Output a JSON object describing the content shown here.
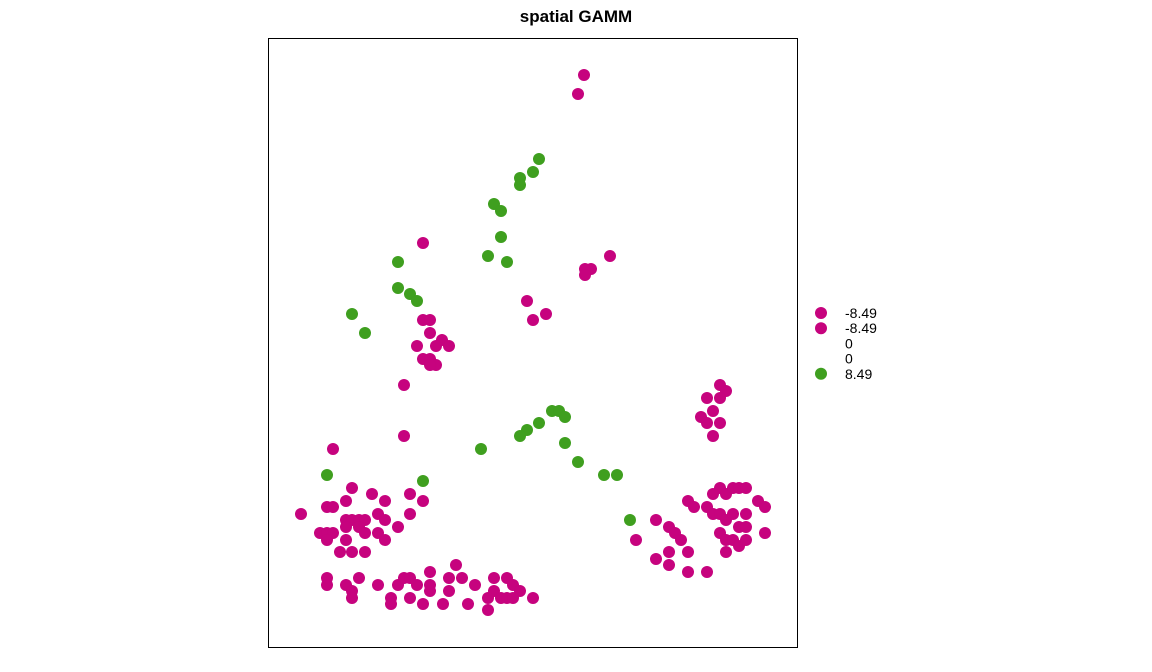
{
  "chart_data": {
    "type": "scatter",
    "title": "spatial GAMM",
    "xlabel": "",
    "ylabel": "",
    "grid": false,
    "axes_shown": false,
    "legend_position": "right",
    "colors": {
      "negative": "#c6037e",
      "positive": "#3f9f1f"
    },
    "legend": [
      {
        "label": "-8.49",
        "color": "#c6037e"
      },
      {
        "label": "-8.49",
        "color": "#c6037e"
      },
      {
        "label": "0",
        "color": null
      },
      {
        "label": "0",
        "color": null
      },
      {
        "label": "8.49",
        "color": "#3f9f1f"
      }
    ],
    "series": [
      {
        "color": "#c6037e",
        "points": [
          [
            584,
            75
          ],
          [
            578,
            94
          ],
          [
            423,
            243
          ],
          [
            610,
            256
          ],
          [
            591,
            269
          ],
          [
            585,
            269
          ],
          [
            585,
            275
          ],
          [
            527,
            301
          ],
          [
            546,
            314
          ],
          [
            533,
            320
          ],
          [
            423,
            320
          ],
          [
            430,
            320
          ],
          [
            430,
            333
          ],
          [
            442,
            340
          ],
          [
            436,
            346
          ],
          [
            449,
            346
          ],
          [
            417,
            346
          ],
          [
            423,
            359
          ],
          [
            430,
            359
          ],
          [
            436,
            365
          ],
          [
            430,
            365
          ],
          [
            404,
            385
          ],
          [
            720,
            385
          ],
          [
            726,
            391
          ],
          [
            707,
            398
          ],
          [
            720,
            398
          ],
          [
            713,
            411
          ],
          [
            701,
            417
          ],
          [
            707,
            423
          ],
          [
            720,
            423
          ],
          [
            713,
            436
          ],
          [
            404,
            436
          ],
          [
            333,
            449
          ],
          [
            352,
            488
          ],
          [
            346,
            501
          ],
          [
            372,
            494
          ],
          [
            385,
            501
          ],
          [
            410,
            494
          ],
          [
            423,
            501
          ],
          [
            410,
            514
          ],
          [
            327,
            507
          ],
          [
            333,
            507
          ],
          [
            301,
            514
          ],
          [
            378,
            514
          ],
          [
            385,
            520
          ],
          [
            346,
            520
          ],
          [
            352,
            520
          ],
          [
            359,
            520
          ],
          [
            365,
            520
          ],
          [
            398,
            527
          ],
          [
            320,
            533
          ],
          [
            327,
            533
          ],
          [
            333,
            533
          ],
          [
            346,
            527
          ],
          [
            359,
            527
          ],
          [
            365,
            533
          ],
          [
            378,
            533
          ],
          [
            327,
            540
          ],
          [
            346,
            540
          ],
          [
            385,
            540
          ],
          [
            340,
            552
          ],
          [
            352,
            552
          ],
          [
            365,
            552
          ],
          [
            720,
            488
          ],
          [
            713,
            494
          ],
          [
            726,
            494
          ],
          [
            733,
            488
          ],
          [
            739,
            488
          ],
          [
            746,
            488
          ],
          [
            688,
            501
          ],
          [
            694,
            507
          ],
          [
            707,
            507
          ],
          [
            713,
            514
          ],
          [
            720,
            514
          ],
          [
            726,
            520
          ],
          [
            733,
            514
          ],
          [
            746,
            514
          ],
          [
            758,
            501
          ],
          [
            765,
            507
          ],
          [
            739,
            527
          ],
          [
            746,
            527
          ],
          [
            765,
            533
          ],
          [
            720,
            533
          ],
          [
            726,
            540
          ],
          [
            733,
            540
          ],
          [
            739,
            546
          ],
          [
            746,
            540
          ],
          [
            726,
            552
          ],
          [
            656,
            520
          ],
          [
            669,
            527
          ],
          [
            675,
            533
          ],
          [
            681,
            540
          ],
          [
            636,
            540
          ],
          [
            669,
            552
          ],
          [
            688,
            552
          ],
          [
            656,
            559
          ],
          [
            669,
            565
          ],
          [
            688,
            572
          ],
          [
            707,
            572
          ],
          [
            327,
            578
          ],
          [
            327,
            585
          ],
          [
            346,
            585
          ],
          [
            359,
            578
          ],
          [
            378,
            585
          ],
          [
            398,
            585
          ],
          [
            404,
            578
          ],
          [
            410,
            578
          ],
          [
            417,
            585
          ],
          [
            430,
            572
          ],
          [
            430,
            585
          ],
          [
            449,
            578
          ],
          [
            456,
            565
          ],
          [
            462,
            578
          ],
          [
            475,
            585
          ],
          [
            494,
            578
          ],
          [
            507,
            578
          ],
          [
            513,
            585
          ],
          [
            520,
            591
          ],
          [
            352,
            591
          ],
          [
            352,
            598
          ],
          [
            391,
            598
          ],
          [
            391,
            604
          ],
          [
            410,
            598
          ],
          [
            423,
            604
          ],
          [
            430,
            591
          ],
          [
            443,
            604
          ],
          [
            449,
            591
          ],
          [
            468,
            604
          ],
          [
            488,
            598
          ],
          [
            494,
            591
          ],
          [
            501,
            598
          ],
          [
            507,
            598
          ],
          [
            513,
            598
          ],
          [
            533,
            598
          ],
          [
            488,
            610
          ]
        ]
      },
      {
        "color": "#3f9f1f",
        "points": [
          [
            539,
            159
          ],
          [
            533,
            172
          ],
          [
            520,
            178
          ],
          [
            520,
            185
          ],
          [
            494,
            204
          ],
          [
            501,
            211
          ],
          [
            501,
            237
          ],
          [
            488,
            256
          ],
          [
            507,
            262
          ],
          [
            398,
            262
          ],
          [
            398,
            288
          ],
          [
            410,
            294
          ],
          [
            417,
            301
          ],
          [
            352,
            314
          ],
          [
            365,
            333
          ],
          [
            552,
            411
          ],
          [
            559,
            411
          ],
          [
            565,
            417
          ],
          [
            539,
            423
          ],
          [
            527,
            430
          ],
          [
            520,
            436
          ],
          [
            565,
            443
          ],
          [
            481,
            449
          ],
          [
            578,
            462
          ],
          [
            604,
            475
          ],
          [
            617,
            475
          ],
          [
            327,
            475
          ],
          [
            423,
            481
          ],
          [
            630,
            520
          ]
        ]
      }
    ]
  }
}
